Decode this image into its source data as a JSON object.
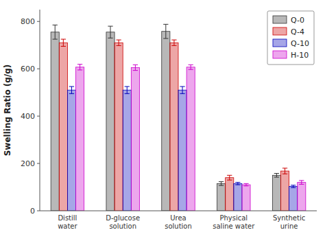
{
  "chart_data": {
    "type": "bar",
    "categories": [
      "Distill\nwater",
      "D-glucose\nsolution",
      "Urea\nsolution",
      "Physical\nsaline water",
      "Synthetic\nurine"
    ],
    "series": [
      {
        "name": "Q-0",
        "color": "#333333",
        "values": [
          755,
          755,
          758,
          115,
          150
        ],
        "errors": [
          30,
          25,
          30,
          8,
          8
        ]
      },
      {
        "name": "Q-4",
        "color": "#cc0000",
        "values": [
          710,
          710,
          710,
          140,
          168
        ],
        "errors": [
          15,
          12,
          12,
          10,
          12
        ]
      },
      {
        "name": "Q-10",
        "color": "#0000bb",
        "values": [
          510,
          510,
          510,
          115,
          103
        ],
        "errors": [
          15,
          15,
          15,
          5,
          5
        ]
      },
      {
        "name": "H-10",
        "color": "#cc00cc",
        "values": [
          607,
          605,
          607,
          110,
          120
        ],
        "errors": [
          12,
          12,
          10,
          5,
          8
        ]
      }
    ],
    "ylabel": "Swelling Ratio (g/g)",
    "ylim": [
      0,
      850
    ],
    "yticks": [
      0,
      200,
      400,
      600,
      800
    ],
    "grid": false,
    "legend": "upper right"
  }
}
